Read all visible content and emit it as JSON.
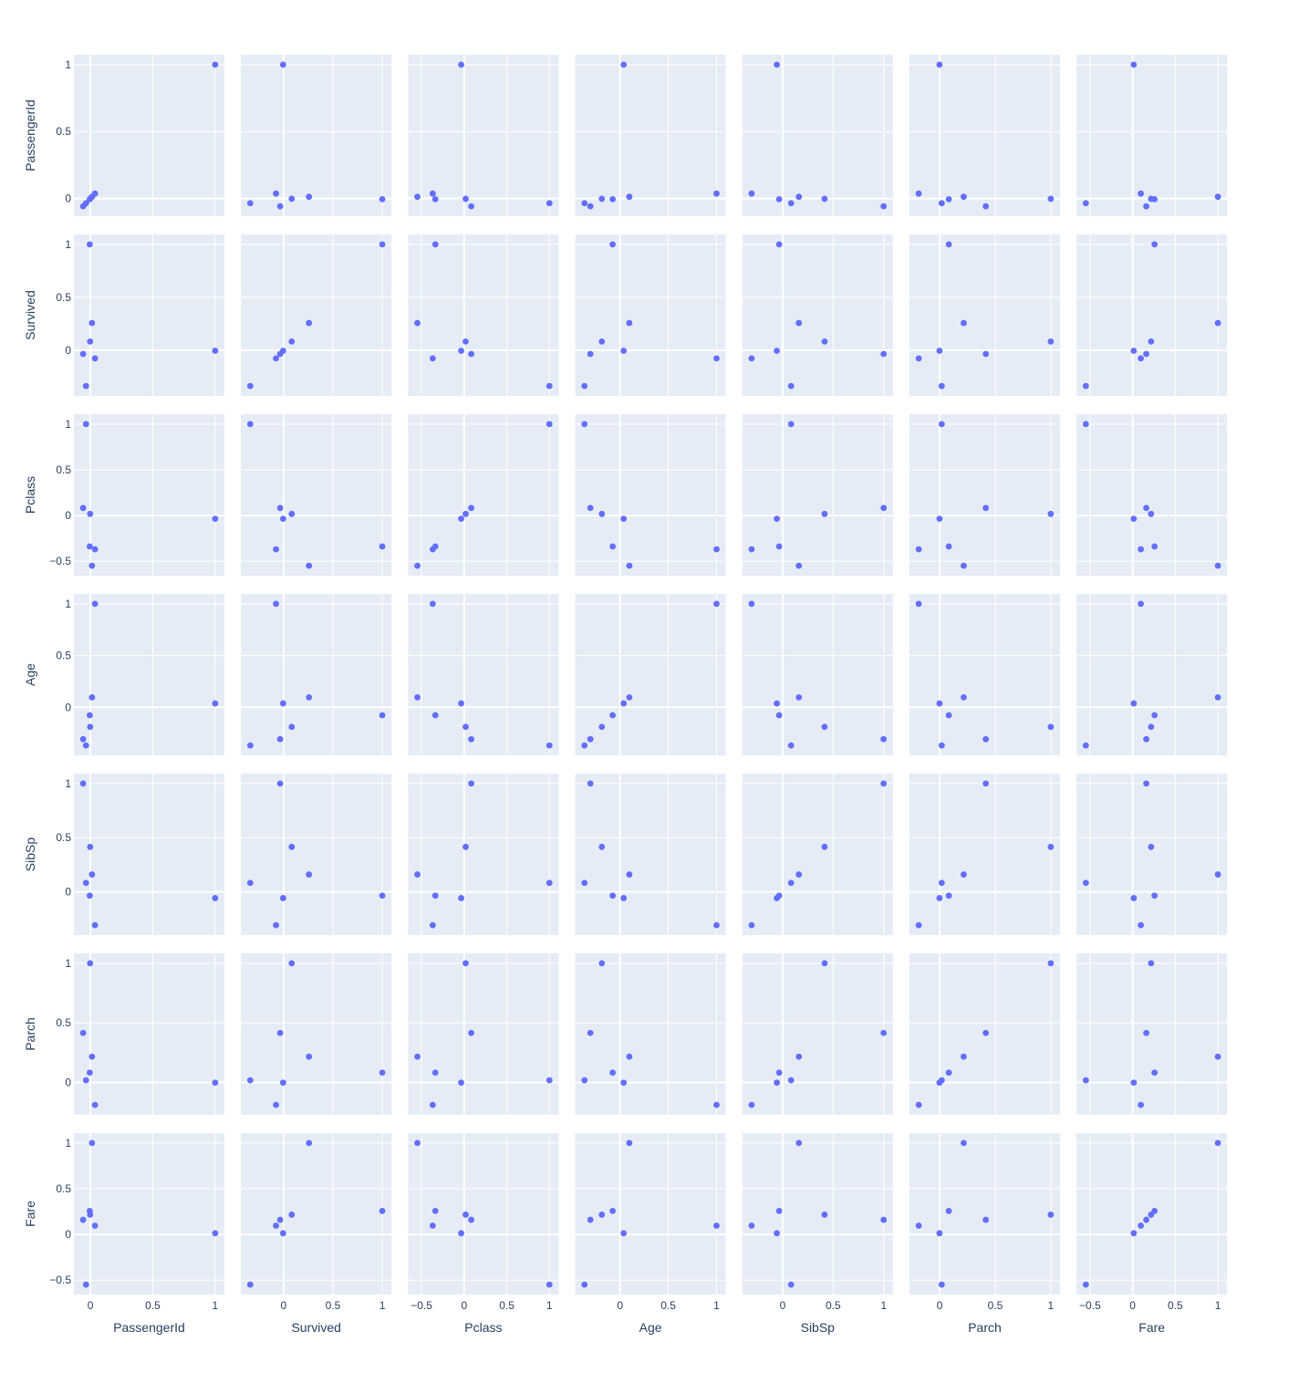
{
  "chart_data": {
    "type": "scatter",
    "subtype": "scatter-matrix",
    "variables": [
      "PassengerId",
      "Survived",
      "Pclass",
      "Age",
      "SibSp",
      "Parch",
      "Fare"
    ],
    "correlation_matrix": [
      [
        1.0,
        -0.005,
        -0.035,
        0.037,
        -0.058,
        -0.002,
        0.013
      ],
      [
        -0.005,
        1.0,
        -0.338,
        -0.077,
        -0.035,
        0.082,
        0.257
      ],
      [
        -0.035,
        -0.338,
        1.0,
        -0.369,
        0.083,
        0.018,
        -0.549
      ],
      [
        0.037,
        -0.077,
        -0.369,
        1.0,
        -0.308,
        -0.189,
        0.096
      ],
      [
        -0.058,
        -0.035,
        0.083,
        -0.308,
        1.0,
        0.415,
        0.16
      ],
      [
        -0.002,
        0.082,
        0.018,
        -0.189,
        0.415,
        1.0,
        0.216
      ],
      [
        0.013,
        0.257,
        -0.549,
        0.096,
        0.16,
        0.216,
        1.0
      ]
    ],
    "x_ticks": [
      [
        0,
        0.5,
        1
      ],
      [
        0,
        0.5,
        1
      ],
      [
        -0.5,
        0,
        0.5,
        1
      ],
      [
        0,
        0.5,
        1
      ],
      [
        0,
        0.5,
        1
      ],
      [
        0,
        0.5,
        1
      ],
      [
        -0.5,
        0,
        0.5,
        1
      ]
    ],
    "y_ticks": [
      [
        0,
        0.5,
        1
      ],
      [
        0,
        0.5,
        1
      ],
      [
        -0.5,
        0,
        0.5,
        1
      ],
      [
        0,
        0.5,
        1
      ],
      [
        0,
        0.5,
        1
      ],
      [
        0,
        0.5,
        1
      ],
      [
        -0.5,
        0,
        0.5,
        1
      ]
    ],
    "grid": true,
    "legend": "none",
    "colors": {
      "marker": "#636efa",
      "plot_background": "#e5ecf6",
      "grid": "#ffffff",
      "text": "#2a3f5f",
      "page_background": "#ffffff"
    }
  }
}
